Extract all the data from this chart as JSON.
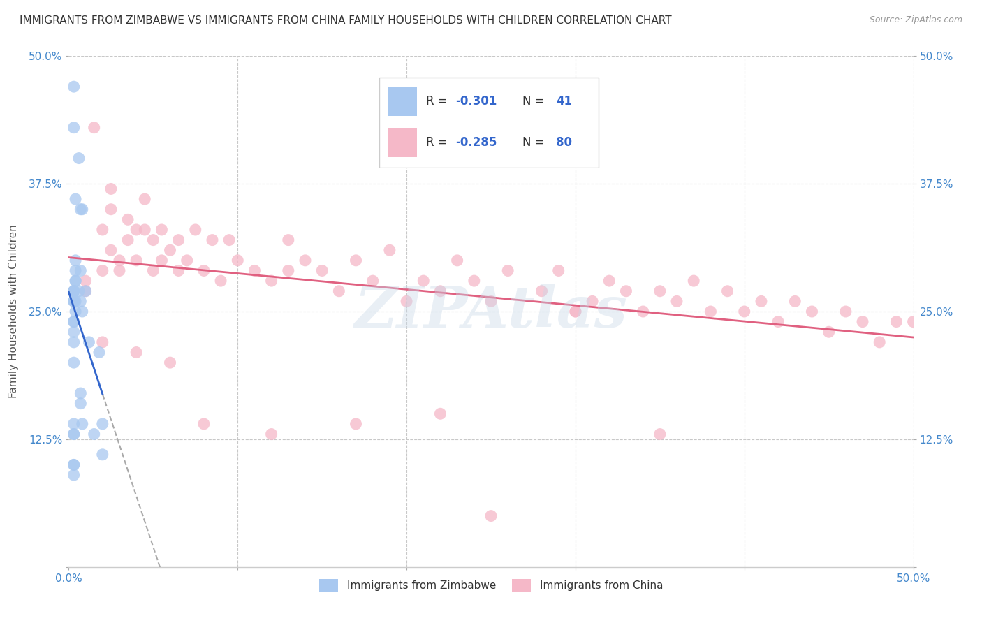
{
  "title": "IMMIGRANTS FROM ZIMBABWE VS IMMIGRANTS FROM CHINA FAMILY HOUSEHOLDS WITH CHILDREN CORRELATION CHART",
  "source": "Source: ZipAtlas.com",
  "ylabel": "Family Households with Children",
  "xlim": [
    0.0,
    0.5
  ],
  "ylim": [
    0.0,
    0.5
  ],
  "color_zimbabwe": "#a8c8f0",
  "color_china": "#f5b8c8",
  "line_color_zimbabwe": "#3366cc",
  "line_color_china": "#e06080",
  "line_color_dashed": "#aaaaaa",
  "background_color": "#ffffff",
  "grid_color": "#c8c8c8",
  "watermark": "ZIPAtlas",
  "legend_r_zimbabwe": "R = -0.301",
  "legend_n_zimbabwe": "N =  41",
  "legend_r_china": "R = -0.285",
  "legend_n_china": "N = 80",
  "zimbabwe_x": [
    0.003,
    0.003,
    0.006,
    0.004,
    0.008,
    0.007,
    0.004,
    0.004,
    0.007,
    0.004,
    0.004,
    0.003,
    0.003,
    0.006,
    0.01,
    0.003,
    0.004,
    0.003,
    0.007,
    0.003,
    0.008,
    0.004,
    0.003,
    0.003,
    0.003,
    0.003,
    0.012,
    0.018,
    0.003,
    0.007,
    0.007,
    0.003,
    0.008,
    0.02,
    0.003,
    0.003,
    0.015,
    0.02,
    0.003,
    0.003,
    0.003
  ],
  "zimbabwe_y": [
    0.47,
    0.43,
    0.4,
    0.36,
    0.35,
    0.35,
    0.3,
    0.29,
    0.29,
    0.28,
    0.28,
    0.27,
    0.27,
    0.27,
    0.27,
    0.27,
    0.26,
    0.26,
    0.26,
    0.26,
    0.25,
    0.25,
    0.24,
    0.24,
    0.23,
    0.22,
    0.22,
    0.21,
    0.2,
    0.17,
    0.16,
    0.14,
    0.14,
    0.14,
    0.13,
    0.13,
    0.13,
    0.11,
    0.1,
    0.1,
    0.09
  ],
  "china_x": [
    0.01,
    0.01,
    0.015,
    0.02,
    0.02,
    0.025,
    0.025,
    0.025,
    0.03,
    0.03,
    0.035,
    0.035,
    0.04,
    0.04,
    0.045,
    0.045,
    0.05,
    0.05,
    0.055,
    0.055,
    0.06,
    0.065,
    0.065,
    0.07,
    0.075,
    0.08,
    0.085,
    0.09,
    0.095,
    0.1,
    0.11,
    0.12,
    0.13,
    0.13,
    0.14,
    0.15,
    0.16,
    0.17,
    0.18,
    0.19,
    0.2,
    0.21,
    0.22,
    0.23,
    0.24,
    0.25,
    0.26,
    0.28,
    0.29,
    0.3,
    0.31,
    0.32,
    0.33,
    0.34,
    0.35,
    0.36,
    0.37,
    0.38,
    0.39,
    0.4,
    0.41,
    0.42,
    0.43,
    0.44,
    0.45,
    0.46,
    0.47,
    0.48,
    0.49,
    0.5,
    0.3,
    0.22,
    0.17,
    0.12,
    0.08,
    0.06,
    0.04,
    0.02,
    0.35,
    0.25
  ],
  "china_y": [
    0.27,
    0.28,
    0.43,
    0.29,
    0.33,
    0.31,
    0.35,
    0.37,
    0.29,
    0.3,
    0.32,
    0.34,
    0.3,
    0.33,
    0.33,
    0.36,
    0.29,
    0.32,
    0.3,
    0.33,
    0.31,
    0.29,
    0.32,
    0.3,
    0.33,
    0.29,
    0.32,
    0.28,
    0.32,
    0.3,
    0.29,
    0.28,
    0.29,
    0.32,
    0.3,
    0.29,
    0.27,
    0.3,
    0.28,
    0.31,
    0.26,
    0.28,
    0.27,
    0.3,
    0.28,
    0.26,
    0.29,
    0.27,
    0.29,
    0.25,
    0.26,
    0.28,
    0.27,
    0.25,
    0.27,
    0.26,
    0.28,
    0.25,
    0.27,
    0.25,
    0.26,
    0.24,
    0.26,
    0.25,
    0.23,
    0.25,
    0.24,
    0.22,
    0.24,
    0.24,
    0.25,
    0.15,
    0.14,
    0.13,
    0.14,
    0.2,
    0.21,
    0.22,
    0.13,
    0.05
  ]
}
